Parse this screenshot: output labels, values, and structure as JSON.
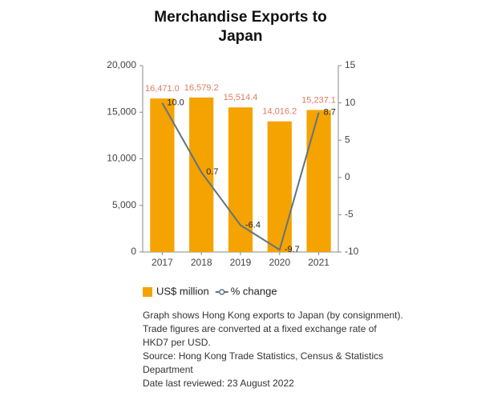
{
  "chart_data": {
    "type": "bar",
    "title": "Merchandise Exports to Japan",
    "categories": [
      "2017",
      "2018",
      "2019",
      "2020",
      "2021"
    ],
    "series": [
      {
        "name": "US$ million",
        "color": "#f5a300",
        "values": [
          16471.0,
          16579.2,
          15514.4,
          14016.2,
          15237.1
        ],
        "value_labels": [
          "16,471.0",
          "16,579.2",
          "15,514.4",
          "14,016.2",
          "15,237.1"
        ]
      },
      {
        "name": "% change",
        "type": "line",
        "axis": "y2",
        "color": "#5f7482",
        "values": [
          10.0,
          0.7,
          -6.4,
          -9.7,
          8.7
        ],
        "value_labels": [
          "10.0",
          "0.7",
          "-6.4",
          "-9.7",
          "8.7"
        ]
      }
    ],
    "ylim": [
      0,
      20000
    ],
    "yticks": [
      0,
      {
        "value": 5000,
        "label": "5,000"
      },
      {
        "value": 10000,
        "label": "10,000"
      },
      {
        "value": 15000,
        "label": "15,000"
      },
      {
        "value": 20000,
        "label": "20,000"
      }
    ],
    "y2lim": [
      -10,
      15
    ],
    "y2ticks": [
      -10,
      -5,
      0,
      5,
      10,
      15
    ],
    "grid": false,
    "notes": [
      "Graph shows Hong Kong exports to Japan (by consignment). Trade figures are converted at a fixed exchange rate of HKD7 per USD.",
      "Source: Hong Kong Trade Statistics, Census & Statistics Department",
      "Date last reviewed: 23 August 2022"
    ]
  }
}
